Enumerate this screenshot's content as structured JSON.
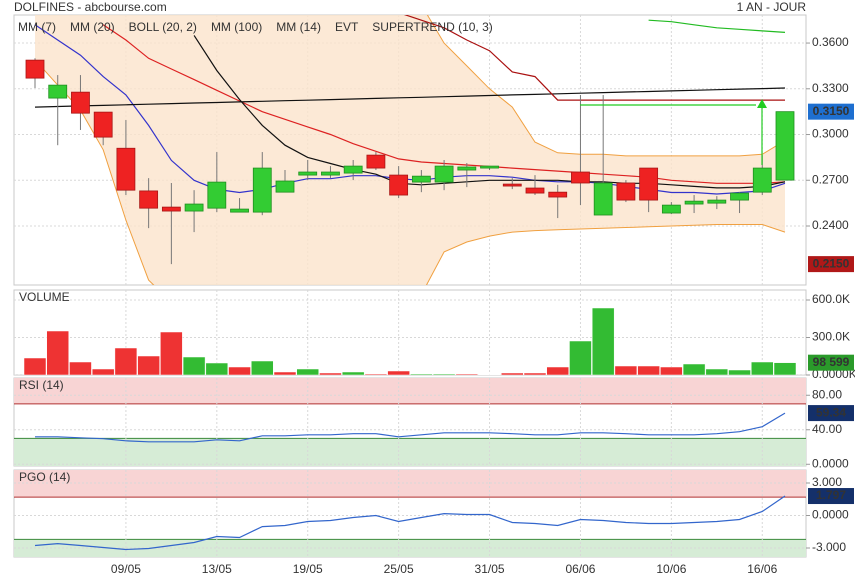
{
  "header": {
    "title": "DOLFINES - abcbourse.com",
    "period": "1 AN - JOUR"
  },
  "chart_data": [
    {
      "type": "candlestick",
      "categories": [
        null,
        null,
        null,
        null,
        "09/05",
        null,
        null,
        null,
        "13/05",
        null,
        null,
        null,
        "19/05",
        null,
        null,
        null,
        "25/05",
        null,
        null,
        null,
        "31/05",
        null,
        null,
        null,
        "06/06",
        null,
        null,
        null,
        "10/06",
        null,
        null,
        null,
        "16/06",
        null
      ],
      "open": [
        0.3488,
        0.3239,
        0.3278,
        0.3147,
        0.291,
        0.263,
        0.2524,
        0.2498,
        0.2517,
        0.2491,
        0.2491,
        0.2622,
        0.2734,
        0.2734,
        0.2747,
        0.2865,
        0.2734,
        0.2688,
        0.2688,
        0.2767,
        0.278,
        0.2675,
        0.2649,
        0.2622,
        0.2754,
        0.2472,
        0.2682,
        0.278,
        0.2485,
        0.2544,
        0.255,
        0.257,
        0.2622,
        0.2701
      ],
      "high": [
        0.35,
        0.339,
        0.339,
        0.3147,
        0.3095,
        0.2714,
        0.2682,
        0.2635,
        0.2885,
        0.2583,
        0.2885,
        0.2767,
        0.2833,
        0.2793,
        0.2833,
        0.2885,
        0.2793,
        0.2767,
        0.2833,
        0.2813,
        0.2793,
        0.2714,
        0.2734,
        0.267,
        0.3259,
        0.3259,
        0.2701,
        0.278,
        0.2557,
        0.2603,
        0.2596,
        0.2622,
        0.2865,
        0.315
      ],
      "low": [
        0.3305,
        0.293,
        0.303,
        0.293,
        0.2603,
        0.2386,
        0.215,
        0.236,
        0.2491,
        0.2491,
        0.2471,
        0.2622,
        0.2701,
        0.2714,
        0.2701,
        0.2767,
        0.2583,
        0.2622,
        0.2635,
        0.2655,
        0.2767,
        0.2642,
        0.2603,
        0.2452,
        0.2537,
        0.2472,
        0.2557,
        0.2491,
        0.2478,
        0.2485,
        0.2511,
        0.2485,
        0.2603,
        0.2701
      ],
      "close": [
        0.337,
        0.3324,
        0.314,
        0.2983,
        0.2635,
        0.2517,
        0.2498,
        0.2544,
        0.2688,
        0.2511,
        0.278,
        0.2695,
        0.2754,
        0.2754,
        0.2793,
        0.278,
        0.2603,
        0.2727,
        0.2793,
        0.2787,
        0.2793,
        0.2662,
        0.2616,
        0.259,
        0.2682,
        0.2682,
        0.257,
        0.257,
        0.2537,
        0.2563,
        0.257,
        0.2616,
        0.278,
        0.315
      ],
      "up_color": "#33cc33",
      "down_color": "#ee2222",
      "ylim": [
        0.2013,
        0.3784
      ],
      "yticks": [
        {
          "value": 0.36,
          "label": "0.3600"
        },
        {
          "value": 0.33,
          "label": "0.3300"
        },
        {
          "value": 0.3,
          "label": "0.3000"
        },
        {
          "value": 0.27,
          "label": "0.2700"
        },
        {
          "value": 0.24,
          "label": "0.2400"
        }
      ],
      "grid": true,
      "series": [
        {
          "name": "MM (7)",
          "color": "#3333cc",
          "values": [
            0.372,
            0.362,
            0.352,
            0.338,
            0.326,
            0.306,
            0.283,
            0.27,
            0.264,
            0.262,
            0.264,
            0.268,
            0.271,
            0.271,
            0.273,
            0.273,
            0.271,
            0.27,
            0.272,
            0.273,
            0.273,
            0.272,
            0.27,
            0.269,
            0.269,
            0.268,
            0.266,
            0.264,
            0.262,
            0.262,
            0.261,
            0.262,
            0.263,
            0.268
          ]
        },
        {
          "name": "MM (20)",
          "color": "#dd2222",
          "values": [
            null,
            null,
            null,
            0.372,
            0.362,
            0.35,
            0.343,
            0.336,
            0.329,
            0.322,
            0.315,
            0.31,
            0.305,
            0.3,
            0.294,
            0.289,
            0.284,
            0.282,
            0.281,
            0.28,
            0.279,
            0.278,
            0.277,
            0.276,
            0.275,
            0.274,
            0.273,
            0.272,
            0.27,
            0.269,
            0.268,
            0.268,
            0.268,
            0.269
          ]
        },
        {
          "name": "BOLL (20, 2)",
          "color": "#f0a040",
          "fill": "#fbe3cc",
          "upper": [
            0.385,
            0.385,
            0.385,
            0.385,
            0.385,
            0.385,
            0.385,
            0.385,
            0.385,
            0.385,
            0.385,
            0.385,
            0.385,
            0.385,
            0.385,
            0.385,
            0.385,
            0.385,
            0.36,
            0.345,
            0.33,
            0.318,
            0.295,
            0.288,
            0.287,
            0.287,
            0.286,
            0.286,
            0.286,
            0.286,
            0.286,
            0.286,
            0.287,
            0.296
          ],
          "lower": [
            0.349,
            0.3324,
            0.316,
            0.29,
            0.2439,
            0.2045,
            0.19,
            0.185,
            0.18,
            0.178,
            0.176,
            0.175,
            0.175,
            0.176,
            0.178,
            0.182,
            0.188,
            0.195,
            0.223,
            0.2295,
            0.2334,
            0.236,
            0.237,
            0.2375,
            0.238,
            0.2385,
            0.239,
            0.2395,
            0.24,
            0.2405,
            0.241,
            0.241,
            0.241,
            0.236
          ]
        },
        {
          "name": "MM (100)",
          "color": "#22bb22",
          "values": [
            null,
            null,
            null,
            null,
            null,
            null,
            null,
            null,
            null,
            null,
            null,
            null,
            null,
            null,
            null,
            null,
            null,
            null,
            null,
            null,
            null,
            null,
            null,
            null,
            null,
            null,
            null,
            0.375,
            0.374,
            0.372,
            0.37,
            0.369,
            0.368,
            0.367
          ]
        },
        {
          "name": "MM (14)",
          "color": "#111111",
          "values": [
            null,
            null,
            null,
            null,
            null,
            null,
            null,
            0.365,
            0.342,
            0.323,
            0.306,
            0.293,
            0.285,
            0.281,
            0.277,
            0.274,
            0.268,
            0.267,
            0.268,
            0.269,
            0.27,
            0.27,
            0.27,
            0.27,
            0.269,
            0.269,
            0.268,
            0.268,
            0.267,
            0.266,
            0.265,
            0.265,
            0.266,
            0.269
          ]
        },
        {
          "name": "EVT",
          "color": "#111111",
          "values": [
            0.318,
            0.3184,
            0.3188,
            0.3191,
            0.3195,
            0.3199,
            0.3203,
            0.3207,
            0.321,
            0.3214,
            0.3218,
            0.3222,
            0.3225,
            0.3229,
            0.3233,
            0.3237,
            0.3241,
            0.3244,
            0.3248,
            0.3252,
            0.3256,
            0.326,
            0.3263,
            0.3267,
            0.3271,
            0.3275,
            0.3279,
            0.3282,
            0.3286,
            0.329,
            0.3294,
            0.3298,
            0.3301,
            0.3305
          ]
        },
        {
          "name": "SUPERTREND (10, 3)",
          "color": "#aa1111",
          "values": [
            null,
            null,
            null,
            null,
            null,
            null,
            null,
            null,
            null,
            null,
            null,
            null,
            null,
            null,
            null,
            null,
            0.38,
            0.375,
            0.37,
            0.362,
            0.355,
            0.341,
            0.338,
            0.3226,
            0.3226,
            0.3226,
            0.3226,
            0.3226,
            0.3226,
            0.3226,
            0.3226,
            0.3226,
            0.3226,
            0.3226
          ]
        }
      ],
      "value_boxes": [
        {
          "value": 0.315,
          "label": "0.3150",
          "color": "#1e6fd0"
        },
        {
          "value": 0.215,
          "label": "0.2150",
          "color": "#b01818"
        }
      ]
    },
    {
      "type": "bar",
      "title": "VOLUME",
      "title_color": "#2a9a2a",
      "values": [
        136,
        352,
        104,
        48,
        216,
        152,
        344,
        144,
        96,
        64,
        112,
        24,
        48,
        16,
        24,
        8,
        32,
        8,
        8,
        8,
        4,
        16,
        16,
        64,
        272,
        536,
        72,
        72,
        64,
        88,
        48,
        40,
        104,
        98.599
      ],
      "colors": [
        "#ee3333",
        "#ee3333",
        "#ee3333",
        "#ee3333",
        "#ee3333",
        "#ee3333",
        "#ee3333",
        "#33bb33",
        "#33bb33",
        "#ee3333",
        "#33bb33",
        "#ee3333",
        "#33bb33",
        "#ee3333",
        "#33bb33",
        "#ee3333",
        "#ee3333",
        "#33bb33",
        "#33bb33",
        "#ee3333",
        "#33bb33",
        "#ee3333",
        "#ee3333",
        "#ee3333",
        "#33bb33",
        "#33bb33",
        "#ee3333",
        "#ee3333",
        "#ee3333",
        "#33bb33",
        "#33bb33",
        "#33bb33",
        "#33bb33",
        "#33bb33"
      ],
      "ylim": [
        0,
        680
      ],
      "yticks": [
        {
          "value": 600,
          "label": "600.0K"
        },
        {
          "value": 300,
          "label": "300.0K"
        },
        {
          "value": 0,
          "label": "0.0000K"
        }
      ],
      "grid": true,
      "value_boxes": [
        {
          "value": 98.599,
          "label": "98 599",
          "color": "#2a9a2a"
        }
      ]
    },
    {
      "type": "line",
      "title": "RSI (14)",
      "title_color": "#1a4d9c",
      "color": "#3366cc",
      "values": [
        31.9,
        31.9,
        30.7,
        29.6,
        27.2,
        26.1,
        26.1,
        26.1,
        28.4,
        27.2,
        33,
        33,
        34.2,
        34.2,
        35.4,
        35.4,
        31.9,
        34.2,
        36.5,
        36.5,
        36.5,
        35.4,
        34.2,
        34.2,
        36.5,
        36.5,
        35.4,
        34.2,
        34.2,
        34.2,
        35.4,
        37.7,
        43.5,
        59.34
      ],
      "ylim": [
        -2,
        100
      ],
      "yticks": [
        {
          "value": 80,
          "label": "80.00"
        },
        {
          "value": 40,
          "label": "40.00"
        },
        {
          "value": 0,
          "label": "0.0000"
        }
      ],
      "grid": true,
      "zones": {
        "upper": 70,
        "lower": 30,
        "upper_color": "#f8d4d4",
        "lower_color": "#d6ecd6",
        "upper_line": "#b03030",
        "lower_line": "#3a8a3a"
      },
      "value_boxes": [
        {
          "value": 59.34,
          "label": "59.34",
          "color": "#14306a"
        }
      ]
    },
    {
      "type": "line",
      "title": "PGO (14)",
      "title_color": "#1a4d9c",
      "color": "#3366cc",
      "values": [
        -2.77,
        -2.59,
        -2.77,
        -2.95,
        -3.14,
        -3.05,
        -2.77,
        -2.49,
        -1.94,
        -2.03,
        -1.02,
        -0.92,
        -0.55,
        -0.46,
        -0.18,
        0,
        -0.55,
        -0.18,
        0.18,
        0.09,
        0.09,
        -0.65,
        -0.74,
        -0.92,
        -0.37,
        -0.46,
        -0.65,
        -0.74,
        -0.74,
        -0.65,
        -0.55,
        -0.37,
        0.37,
        1.797
      ],
      "ylim": [
        -3.83,
        4.2
      ],
      "yticks": [
        {
          "value": 3,
          "label": "3.000"
        },
        {
          "value": 0,
          "label": "0.0000"
        },
        {
          "value": -3,
          "label": "-3.000"
        }
      ],
      "grid": true,
      "zones": {
        "upper": 1.7,
        "lower": -2.2,
        "upper_color": "#f8d4d4",
        "lower_color": "#d6ecd6",
        "upper_line": "#b03030",
        "lower_line": "#3a8a3a"
      },
      "value_boxes": [
        {
          "value": 1.797,
          "label": "1.797",
          "color": "#14306a"
        }
      ]
    }
  ]
}
